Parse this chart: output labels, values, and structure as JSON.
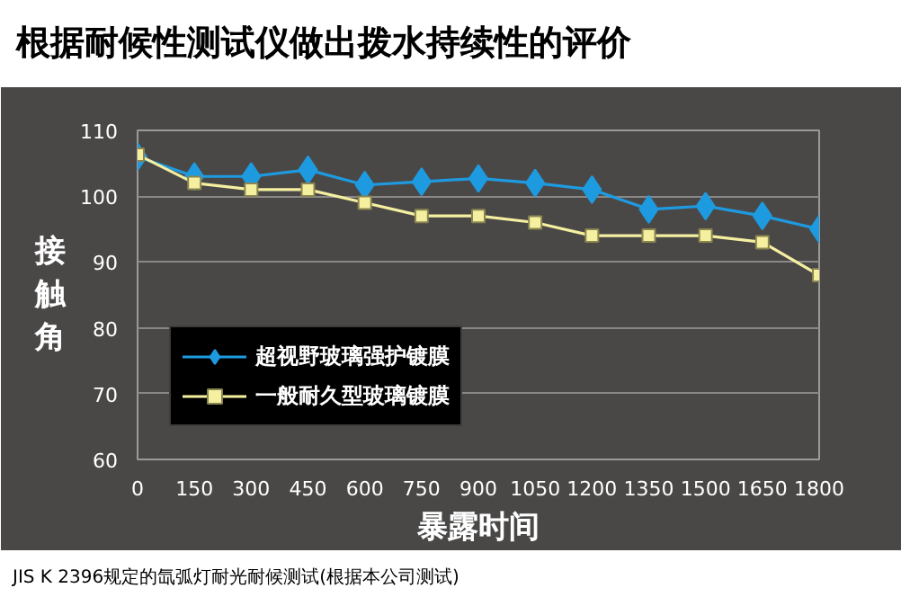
{
  "chart_data": {
    "type": "line",
    "title": "根据耐候性测试仪做出拨水持续性的评价",
    "xlabel": "暴露时间",
    "ylabel": "接触角",
    "x": [
      0,
      150,
      300,
      450,
      600,
      750,
      900,
      1050,
      1200,
      1350,
      1500,
      1650,
      1800
    ],
    "series": [
      {
        "name": "超视野玻璃强护镀膜",
        "color": "#1e9be0",
        "marker": "diamond",
        "values": [
          106,
          103,
          103,
          104,
          101.7,
          102.2,
          102.7,
          102,
          101,
          98,
          98.5,
          97,
          95
        ]
      },
      {
        "name": "一般耐久型玻璃镀膜",
        "color": "#f5f0a0",
        "marker": "square",
        "values": [
          106.3,
          102,
          101,
          101,
          99,
          97,
          97,
          96,
          94,
          94,
          94,
          93,
          88
        ]
      }
    ],
    "xlim": [
      0,
      1800
    ],
    "xticks": [
      0,
      150,
      300,
      450,
      600,
      750,
      900,
      1050,
      1200,
      1350,
      1500,
      1650,
      1800
    ],
    "ylim": [
      60,
      110
    ],
    "yticks": [
      60,
      70,
      80,
      90,
      100,
      110
    ],
    "grid": "y",
    "legend": "bottom left",
    "line_style": "solid",
    "annotations": [
      "JIS K 2396规定的氙弧灯耐光耐候测试(根据本公司测试)"
    ]
  }
}
